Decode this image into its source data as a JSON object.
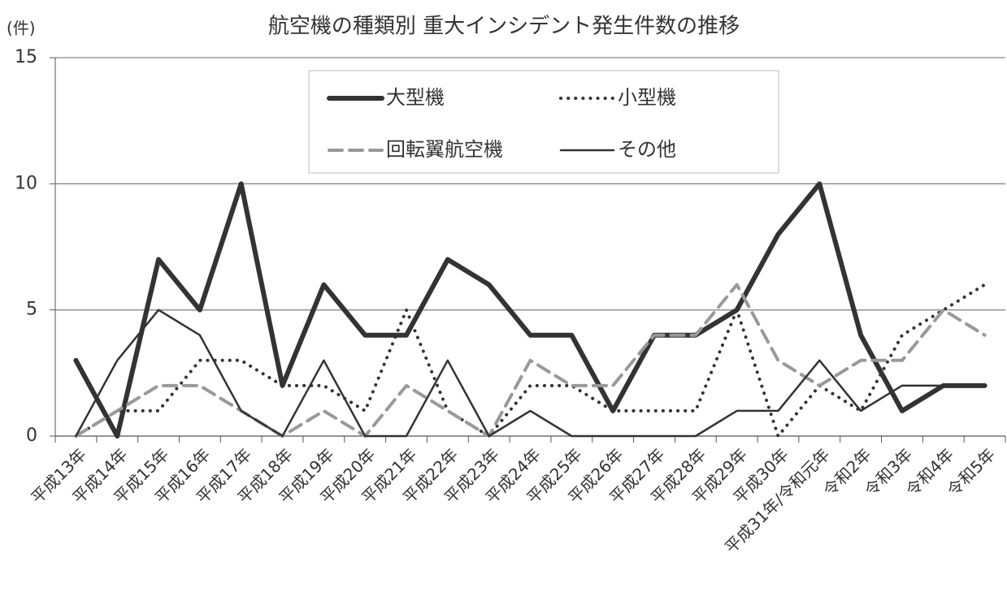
{
  "chart_data": {
    "type": "line",
    "title": "航空機の種類別 重大インシデント発生件数の推移",
    "y_label": "(件)",
    "categories": [
      "平成13年",
      "平成14年",
      "平成15年",
      "平成16年",
      "平成17年",
      "平成18年",
      "平成19年",
      "平成20年",
      "平成21年",
      "平成22年",
      "平成23年",
      "平成24年",
      "平成25年",
      "平成26年",
      "平成27年",
      "平成28年",
      "平成29年",
      "平成30年",
      "平成31年/令和元年",
      "令和2年",
      "令和3年",
      "令和4年",
      "令和5年"
    ],
    "series": [
      {
        "name": "大型機",
        "color": "#333333",
        "width": 6,
        "dash": "solid",
        "values": [
          3,
          0,
          7,
          5,
          10,
          2,
          6,
          4,
          4,
          7,
          6,
          4,
          4,
          1,
          4,
          4,
          5,
          8,
          10,
          4,
          1,
          2,
          2
        ]
      },
      {
        "name": "小型機",
        "color": "#333333",
        "width": 4,
        "dash": "dotted",
        "values": [
          0,
          1,
          1,
          3,
          3,
          2,
          2,
          1,
          5,
          1,
          0,
          2,
          2,
          1,
          1,
          1,
          5,
          0,
          2,
          1,
          4,
          5,
          6
        ]
      },
      {
        "name": "回転翼航空機",
        "color": "#999999",
        "width": 4,
        "dash": "dashed",
        "values": [
          0,
          1,
          2,
          2,
          1,
          0,
          1,
          0,
          2,
          1,
          0,
          3,
          2,
          2,
          4,
          4,
          6,
          3,
          2,
          3,
          3,
          5,
          4
        ]
      },
      {
        "name": "その他",
        "color": "#333333",
        "width": 2.5,
        "dash": "solid",
        "values": [
          0,
          3,
          5,
          4,
          1,
          0,
          3,
          0,
          0,
          3,
          0,
          1,
          0,
          0,
          0,
          0,
          1,
          1,
          3,
          1,
          2,
          2,
          2
        ]
      }
    ],
    "ylim": [
      0,
      15
    ],
    "yticks": [
      0,
      5,
      10,
      15
    ],
    "grid": true,
    "legend": "top"
  }
}
